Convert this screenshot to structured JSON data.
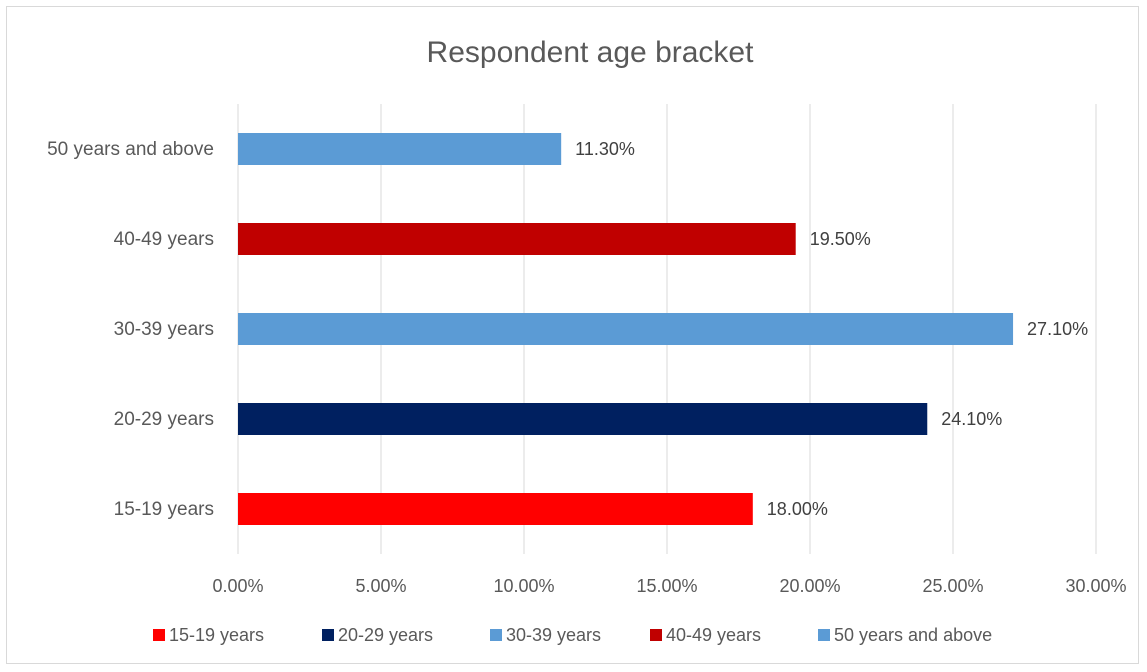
{
  "chart_data": {
    "type": "bar",
    "orientation": "horizontal",
    "title": "Respondent age bracket",
    "categories": [
      "15-19 years",
      "20-29 years",
      "30-39 years",
      "40-49 years",
      "50 years and above"
    ],
    "values": [
      18.0,
      24.1,
      27.1,
      19.5,
      11.3
    ],
    "data_labels": [
      "18.00%",
      "24.10%",
      "27.10%",
      "19.50%",
      "11.30%"
    ],
    "colors": [
      "#ff0000",
      "#002060",
      "#5b9bd5",
      "#c00000",
      "#5b9bd5"
    ],
    "xlim": [
      0,
      30
    ],
    "x_ticks": [
      0,
      5,
      10,
      15,
      20,
      25,
      30
    ],
    "x_tick_labels": [
      "0.00%",
      "5.00%",
      "10.00%",
      "15.00%",
      "20.00%",
      "25.00%",
      "30.00%"
    ],
    "grid": "vertical",
    "legend_position": "bottom",
    "legend": [
      {
        "label": "15-19 years",
        "color": "#ff0000"
      },
      {
        "label": "20-29 years",
        "color": "#002060"
      },
      {
        "label": "30-39 years",
        "color": "#5b9bd5"
      },
      {
        "label": "40-49 years",
        "color": "#c00000"
      },
      {
        "label": "50 years and above",
        "color": "#5b9bd5"
      }
    ]
  }
}
